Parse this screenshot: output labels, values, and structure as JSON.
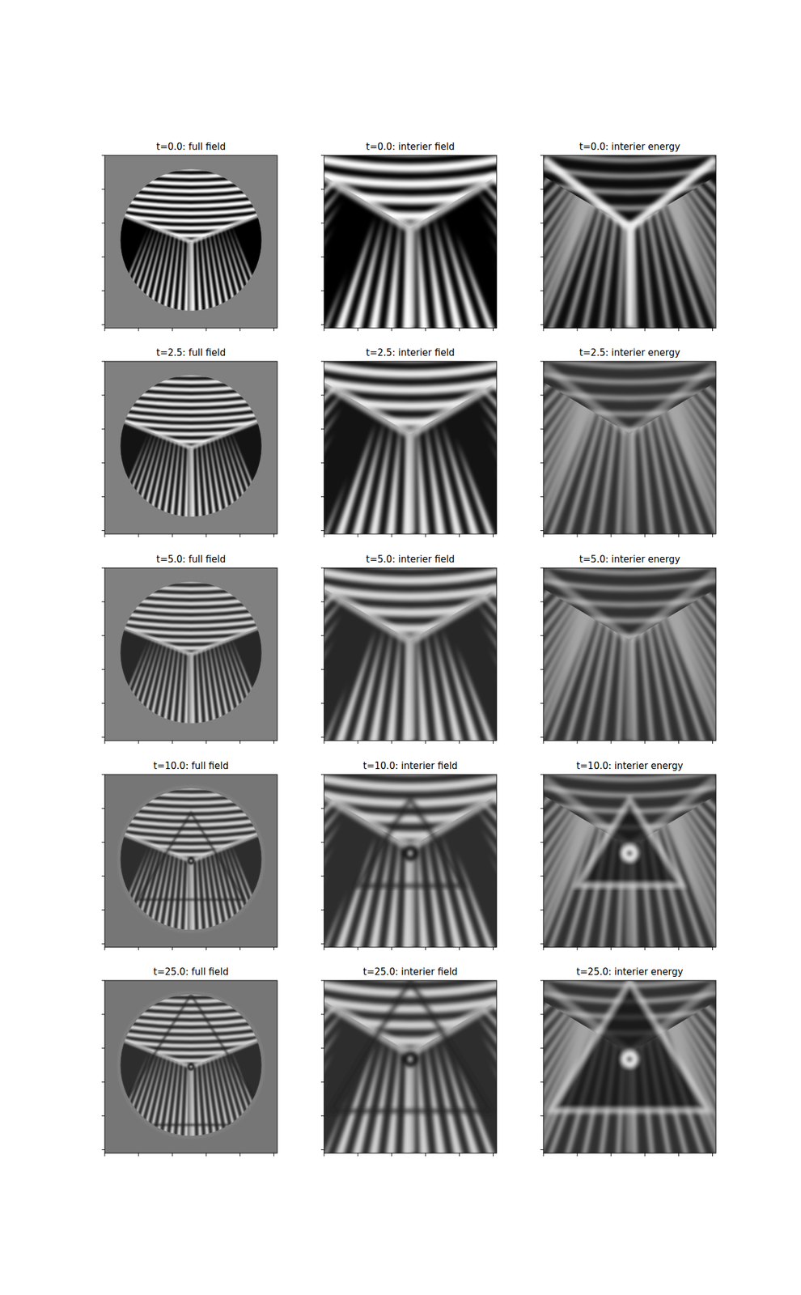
{
  "chart_data": [
    {
      "type": "image",
      "title": "t=0.0: full field",
      "xlim": [
        0,
        5.1
      ],
      "xticks": [
        0,
        1,
        2,
        3,
        4,
        5
      ],
      "ylim": [
        0,
        5.1
      ],
      "yticks": [
        0,
        1,
        2,
        3,
        4,
        5
      ],
      "tick_labels": false
    },
    {
      "type": "image",
      "title": "t=0.0: interier field",
      "xlim": [
        0,
        5.1
      ],
      "xticks": [
        0,
        1,
        2,
        3,
        4,
        5
      ],
      "ylim": [
        0,
        5.1
      ],
      "yticks": [
        0,
        1,
        2,
        3,
        4,
        5
      ],
      "tick_labels": false
    },
    {
      "type": "image",
      "title": "t=0.0: interier energy",
      "xlim": [
        0,
        5.1
      ],
      "xticks": [
        0,
        1,
        2,
        3,
        4,
        5
      ],
      "ylim": [
        0,
        5.1
      ],
      "yticks": [
        0,
        1,
        2,
        3,
        4,
        5
      ],
      "tick_labels": false
    },
    {
      "type": "image",
      "title": "t=2.5: full field",
      "xlim": [
        0,
        5.1
      ],
      "xticks": [
        0,
        1,
        2,
        3,
        4,
        5
      ],
      "ylim": [
        0,
        5.1
      ],
      "yticks": [
        0,
        1,
        2,
        3,
        4,
        5
      ],
      "tick_labels": false
    },
    {
      "type": "image",
      "title": "t=2.5: interier field",
      "xlim": [
        0,
        5.1
      ],
      "xticks": [
        0,
        1,
        2,
        3,
        4,
        5
      ],
      "ylim": [
        0,
        5.1
      ],
      "yticks": [
        0,
        1,
        2,
        3,
        4,
        5
      ],
      "tick_labels": false
    },
    {
      "type": "image",
      "title": "t=2.5: interier energy",
      "xlim": [
        0,
        5.1
      ],
      "xticks": [
        0,
        1,
        2,
        3,
        4,
        5
      ],
      "ylim": [
        0,
        5.1
      ],
      "yticks": [
        0,
        1,
        2,
        3,
        4,
        5
      ],
      "tick_labels": false
    },
    {
      "type": "image",
      "title": "t=5.0: full field",
      "xlim": [
        0,
        5.1
      ],
      "xticks": [
        0,
        1,
        2,
        3,
        4,
        5
      ],
      "ylim": [
        0,
        5.1
      ],
      "yticks": [
        0,
        1,
        2,
        3,
        4,
        5
      ],
      "tick_labels": false
    },
    {
      "type": "image",
      "title": "t=5.0: interier field",
      "xlim": [
        0,
        5.1
      ],
      "xticks": [
        0,
        1,
        2,
        3,
        4,
        5
      ],
      "ylim": [
        0,
        5.1
      ],
      "yticks": [
        0,
        1,
        2,
        3,
        4,
        5
      ],
      "tick_labels": false
    },
    {
      "type": "image",
      "title": "t=5.0: interier energy",
      "xlim": [
        0,
        5.1
      ],
      "xticks": [
        0,
        1,
        2,
        3,
        4,
        5
      ],
      "ylim": [
        0,
        5.1
      ],
      "yticks": [
        0,
        1,
        2,
        3,
        4,
        5
      ],
      "tick_labels": false
    },
    {
      "type": "image",
      "title": "t=10.0: full field",
      "xlim": [
        0,
        5.1
      ],
      "xticks": [
        0,
        1,
        2,
        3,
        4,
        5
      ],
      "ylim": [
        0,
        5.1
      ],
      "yticks": [
        0,
        1,
        2,
        3,
        4,
        5
      ],
      "tick_labels": false
    },
    {
      "type": "image",
      "title": "t=10.0: interier field",
      "xlim": [
        0,
        5.1
      ],
      "xticks": [
        0,
        1,
        2,
        3,
        4,
        5
      ],
      "ylim": [
        0,
        5.1
      ],
      "yticks": [
        0,
        1,
        2,
        3,
        4,
        5
      ],
      "tick_labels": false
    },
    {
      "type": "image",
      "title": "t=10.0: interier energy",
      "xlim": [
        0,
        5.1
      ],
      "xticks": [
        0,
        1,
        2,
        3,
        4,
        5
      ],
      "ylim": [
        0,
        5.1
      ],
      "yticks": [
        0,
        1,
        2,
        3,
        4,
        5
      ],
      "tick_labels": false
    },
    {
      "type": "image",
      "title": "t=25.0: full field",
      "xlim": [
        0,
        5.1
      ],
      "xticks": [
        0,
        1,
        2,
        3,
        4,
        5
      ],
      "ylim": [
        0,
        5.1
      ],
      "yticks": [
        0,
        1,
        2,
        3,
        4,
        5
      ],
      "tick_labels": false
    },
    {
      "type": "image",
      "title": "t=25.0: interier field",
      "xlim": [
        0,
        5.1
      ],
      "xticks": [
        0,
        1,
        2,
        3,
        4,
        5
      ],
      "ylim": [
        0,
        5.1
      ],
      "yticks": [
        0,
        1,
        2,
        3,
        4,
        5
      ],
      "tick_labels": false
    },
    {
      "type": "image",
      "title": "t=25.0: interier energy",
      "xlim": [
        0,
        5.1
      ],
      "xticks": [
        0,
        1,
        2,
        3,
        4,
        5
      ],
      "ylim": [
        0,
        5.1
      ],
      "yticks": [
        0,
        1,
        2,
        3,
        4,
        5
      ],
      "tick_labels": false
    }
  ]
}
